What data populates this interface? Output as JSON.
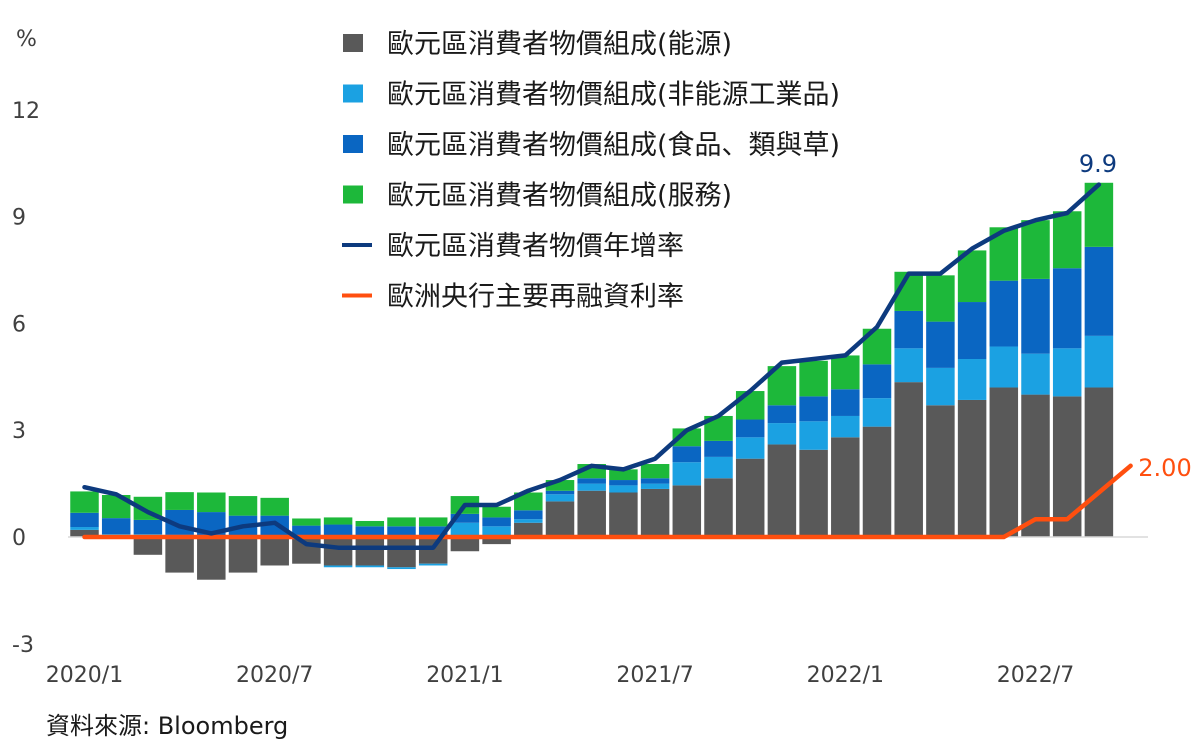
{
  "chart_data": {
    "type": "bar",
    "subtype": "stacked-bar-with-lines",
    "y_unit_label": "%",
    "ylim": [
      -3,
      13.5
    ],
    "yticks": [
      -3,
      0,
      3,
      6,
      9,
      12
    ],
    "ytick_labels": [
      "-3",
      "0",
      "3",
      "6",
      "9",
      "12"
    ],
    "x_tick_labels": [
      {
        "index": 0,
        "label": "2020/1"
      },
      {
        "index": 6,
        "label": "2020/7"
      },
      {
        "index": 12,
        "label": "2021/1"
      },
      {
        "index": 18,
        "label": "2021/7"
      },
      {
        "index": 24,
        "label": "2022/1"
      },
      {
        "index": 30,
        "label": "2022/7"
      }
    ],
    "colors": {
      "energy": "#595959",
      "industrial": "#1ba1e2",
      "food": "#0a66c2",
      "services": "#1db83a",
      "hicp_line": "#0d3a7e",
      "rate_line": "#ff4f0f",
      "zero_line": "#d9d9d9"
    },
    "series": [
      {
        "key": "energy",
        "name": "歐元區消費者物價組成(能源)",
        "values": [
          0.2,
          0,
          -0.5,
          -1.0,
          -1.2,
          -1.0,
          -0.8,
          -0.75,
          -0.8,
          -0.8,
          -0.85,
          -0.75,
          -0.4,
          -0.2,
          0.4,
          1.0,
          1.3,
          1.25,
          1.35,
          1.45,
          1.65,
          2.2,
          2.6,
          2.45,
          2.8,
          3.1,
          4.35,
          3.7,
          3.85,
          4.2,
          4.0,
          3.95,
          4.2
        ]
      },
      {
        "key": "industrial",
        "name": "歐元區消費者物價組成(非能源工業品)",
        "values": [
          0.08,
          0.08,
          0.08,
          0.06,
          0.05,
          0.05,
          0.05,
          0.02,
          -0.05,
          -0.05,
          -0.05,
          -0.05,
          0.4,
          0.3,
          0.1,
          0.2,
          0.2,
          0.2,
          0.15,
          0.65,
          0.6,
          0.6,
          0.6,
          0.8,
          0.6,
          0.8,
          0.95,
          1.05,
          1.15,
          1.15,
          1.15,
          1.35,
          1.45
        ]
      },
      {
        "key": "food",
        "name": "歐元區消費者物價組成(食品、類與草)",
        "values": [
          0.4,
          0.45,
          0.4,
          0.7,
          0.65,
          0.55,
          0.55,
          0.3,
          0.35,
          0.3,
          0.3,
          0.3,
          0.25,
          0.25,
          0.25,
          0.1,
          0.15,
          0.15,
          0.15,
          0.45,
          0.45,
          0.5,
          0.5,
          0.7,
          0.75,
          0.95,
          1.05,
          1.3,
          1.6,
          1.85,
          2.1,
          2.25,
          2.5
        ]
      },
      {
        "key": "services",
        "name": "歐元區消費者物價組成(服務)",
        "values": [
          0.6,
          0.65,
          0.65,
          0.5,
          0.55,
          0.55,
          0.5,
          0.2,
          0.2,
          0.15,
          0.25,
          0.25,
          0.5,
          0.3,
          0.5,
          0.3,
          0.4,
          0.3,
          0.4,
          0.5,
          0.7,
          0.8,
          1.1,
          1.0,
          0.95,
          1.0,
          1.1,
          1.3,
          1.45,
          1.5,
          1.65,
          1.6,
          1.8
        ]
      },
      {
        "key": "hicp_line",
        "name": "歐元區消費者物價年增率",
        "values": [
          1.4,
          1.2,
          0.7,
          0.3,
          0.1,
          0.3,
          0.4,
          -0.2,
          -0.3,
          -0.3,
          -0.3,
          -0.3,
          0.9,
          0.9,
          1.3,
          1.6,
          2.0,
          1.9,
          2.2,
          3.0,
          3.4,
          4.1,
          4.9,
          5.0,
          5.1,
          5.9,
          7.4,
          7.4,
          8.1,
          8.6,
          8.9,
          9.1,
          9.9
        ]
      },
      {
        "key": "rate_line",
        "name": "歐洲央行主要再融資利率",
        "values": [
          0,
          0,
          0,
          0,
          0,
          0,
          0,
          0,
          0,
          0,
          0,
          0,
          0,
          0,
          0,
          0,
          0,
          0,
          0,
          0,
          0,
          0,
          0,
          0,
          0,
          0,
          0,
          0,
          0,
          0,
          0.5,
          0.5,
          1.25,
          2.0
        ]
      }
    ],
    "annotations": [
      {
        "series": "hicp_line",
        "text": "9.9"
      },
      {
        "series": "rate_line",
        "text": "2.00"
      }
    ],
    "source": "資料來源: Bloomberg"
  }
}
